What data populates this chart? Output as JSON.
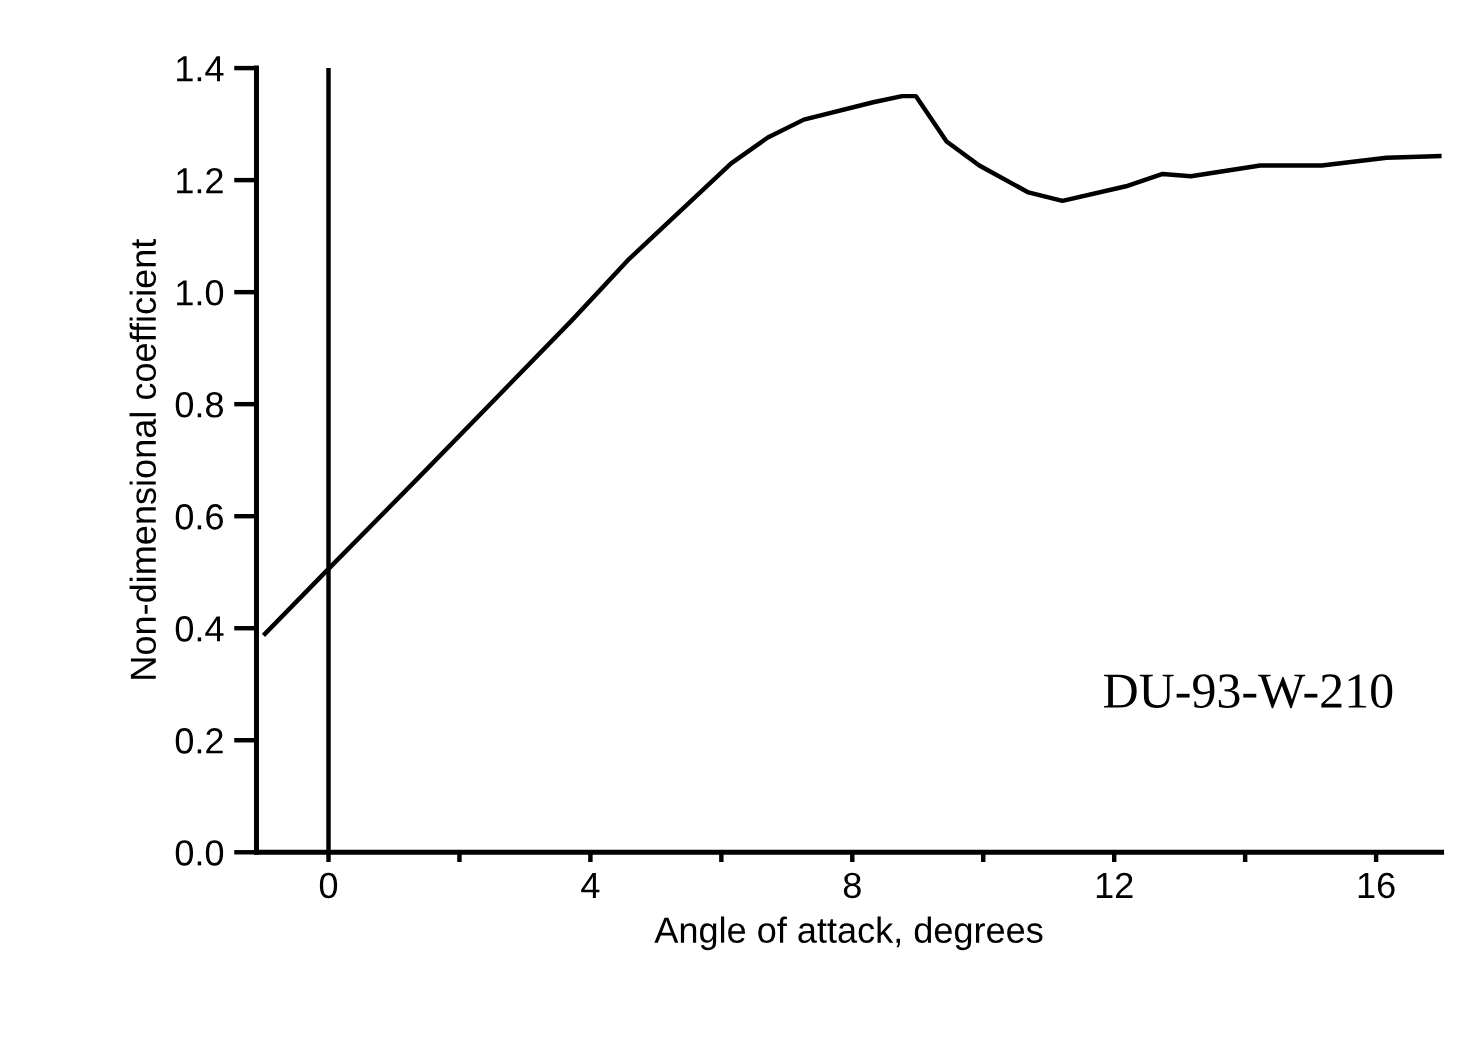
{
  "chart_data": {
    "type": "line",
    "xlabel": "Angle of attack, degrees",
    "ylabel": "Non-dimensional coefficient",
    "annotations": [
      "DU-93-W-210"
    ],
    "xlim": [
      -1.1,
      17
    ],
    "ylim": [
      0,
      1.4
    ],
    "xticks": [
      0,
      {
        "value": 2,
        "label": null
      },
      4,
      {
        "value": 6,
        "label": null
      },
      8,
      {
        "value": 10,
        "label": null
      },
      12,
      {
        "value": 14,
        "label": null
      },
      16
    ],
    "yticks": [
      {
        "value": 0,
        "label": "0.0"
      },
      0.2,
      0.4,
      0.6,
      0.8,
      {
        "value": 1,
        "label": "1.0"
      },
      1.2,
      1.4
    ],
    "grid": false,
    "legend": false,
    "marker": "none",
    "line_style": "solid",
    "ref_lines": [
      {
        "axis": "x",
        "value": 0,
        "color": "#000000"
      }
    ],
    "series": [
      {
        "color": "#000000",
        "x": [
          -0.97,
          0,
          1.36,
          3.72,
          4.59,
          6.15,
          6.71,
          7.26,
          8.32,
          8.76,
          8.97,
          9.44,
          9.94,
          10.69,
          11.21,
          12.18,
          12.74,
          13.17,
          14.23,
          15.17,
          16.16,
          16.99
        ],
        "values": [
          0.39,
          0.506,
          0.667,
          0.95,
          1.059,
          1.23,
          1.276,
          1.308,
          1.339,
          1.35,
          1.35,
          1.269,
          1.226,
          1.178,
          1.163,
          1.189,
          1.211,
          1.207,
          1.226,
          1.226,
          1.24,
          1.243
        ]
      }
    ]
  }
}
